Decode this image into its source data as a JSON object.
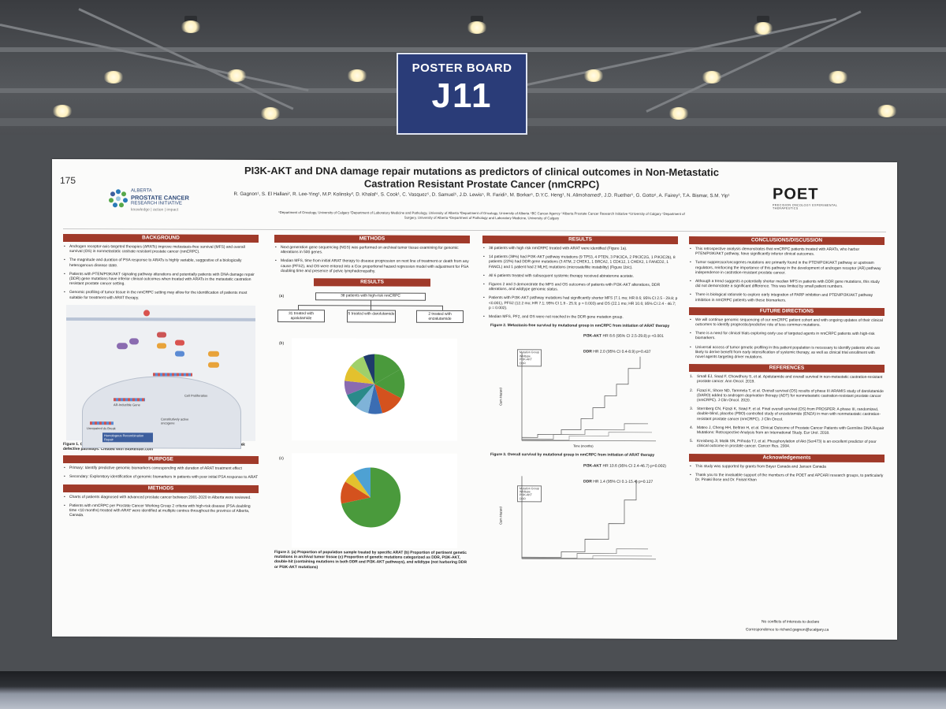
{
  "sign": {
    "line1": "POSTER BOARD",
    "line2": "J11"
  },
  "poster": {
    "number": "175",
    "logo_left": {
      "line1": "ALBERTA",
      "line2": "PROSTATE CANCER",
      "line3": "RESEARCH INITIATIVE",
      "tagline": "knowledge | action | impact"
    },
    "title_line1": "PI3K-AKT and DNA damage repair mutations as predictors of clinical outcomes in Non-Metastatic",
    "title_line2": "Castration Resistant Prostate Cancer (nmCRPC)",
    "authors": "R. Gagnon¹, S. El Hallani², R. Lee-Ying¹, M.P. Kolinsky³, D. Khalaf⁴, S. Cook¹, C. Vasquez⁵, D. Samuel⁵, J.D. Lewis⁵, R. Faridi⁵, M. Borkar⁵, D.Y.C. Heng¹, N. Alimohamed¹, J.D. Ruether¹, G. Gotto⁶, A. Fairey³, T.A. Bismar, S.M. Yip¹",
    "affiliations_line1": "¹Department of Oncology, University of Calgary ²Department of Laboratory Medicine and Pathology, University of Alberta ³Department of Oncology, University of Alberta ⁴BC Cancer Agency ⁵Alberta Prostate Cancer Research Initiative ⁶University of Calgary ⁷Department of",
    "affiliations_line2": "Surgery, University of Alberta ⁸Department of Pathology and Laboratory Medicine, University of Calgary",
    "logo_right": {
      "mark": "POET",
      "sub": "PRECISION ONCOLOGY EXPERIMENTAL THERAPEUTICS"
    },
    "col1": {
      "background_header": "BACKGROUND",
      "background": [
        "Androgen receptor-axis-targeted therapies (ARATs) improve metastasis-free survival (MFS) and overall survival (OS) in nonmetastatic castrate resistant prostate cancer (nmCRPC).",
        "The magnitude and duration of PSA response to ARATs is highly variable, suggestive of a biologically heterogenous disease state.",
        "Patients with PTEN/PI3K/AKT signaling pathway alterations and potentially patients with DNA damage repair (DDR) gene mutations have inferior clinical outcomes when treated with ARATs in the metastatic castration resistant prostate cancer setting.",
        "Genomic profiling of tumor tissue in the nmCRPC setting may allow for the identification of patients most suitable for treatment with ARAT therapy."
      ],
      "figure1_caption": "Figure 1. Oncogenic cellular proliferation via the androgen receptor (AR), PTEN/PI3K/AKT, and DDR defective pathways. Created with BioRender.com",
      "figure1_labels": {
        "proliferation": "Cell Proliferation",
        "constitutive": "Constitutively active oncogene",
        "hr": "Homologous Recombination Repair",
        "unrepaired": "Unrepaired ds Break",
        "ar": "AR-Inducible Gene"
      },
      "purpose_header": "PURPOSE",
      "purpose": [
        "Primary: Identify predictive genomic biomarkers corresponding with duration of ARAT treatment effect",
        "Secondary: Exploratory identification of genomic biomarkers in patients with poor initial PSA response to ARAT"
      ],
      "methods_header": "METHODS",
      "methods": [
        "Charts of patients diagnosed with advanced prostate cancer between 2001-2020 in Alberta were reviewed.",
        "Patients with nmCRPC per Prostate Cancer Working Group 2 criteria with high-risk disease (PSA doubling time <10 months) treated with ARAT were identified at multiple centres throughout the province of Alberta, Canada."
      ]
    },
    "col2": {
      "methods_header": "METHODS",
      "methods": [
        "Next generation gene sequencing (NGS) was performed on archival tumor tissue examining for genomic alterations in 500 genes.",
        "Median MFS, time from initial ARAT therapy to disease progression on next line of treatment or death from any cause (PFS2), and OS were entered into a Cox proportional hazard regression model with adjustment for PSA doubling time and presence of pelvic lymphadenopathy."
      ],
      "results_header": "RESULTS",
      "panel_a": "(a)",
      "flow_top": "38 patients with high-risk nmCRPC",
      "flow_1": "31 treated with apalutamide",
      "flow_2": "5 treated with darolutamide",
      "flow_3": "2 treated with enzalutamide",
      "panel_b": "(b)",
      "panel_c": "(c)",
      "figure2_caption": "Figure 2. (a) Proportion of population sample treated by specific ARAT (b) Proportion of pertinent genetic mutations in archival tumor tissue (c) Proportion of genetic mutations categorized as DDR, PI3K-AKT, double-hit (containing mutations in both DDR and PI3K-AKT pathways), and wildtype (not harboring DDR or PI3K-AKT mutations)"
    },
    "col3": {
      "results_header": "RESULTS",
      "results": [
        "38 patients with high risk nmCRPC treated with ARAT were identified (Figure 1a).",
        "14 patients (38%) had PI3K-AKT pathway mutations (9 TP53, 4 PTEN, 3 PIK3CA, 2 PIK3C2G, 1 PIK3C2b), 8 patients (22%) had DDR gene mutations (3 ATM, 2 CHEK1, 1 BRCA2, 1 CDK12, 1 CHEK2, 1 FANCD2, 1 FANCL) and 1 patient had 2 MLH1 mutations (microsatellite instability) (Figure 1b/c).",
        "All 6 patients treated with subsequent systemic therapy received abiraterone acetate.",
        "Figures 2 and 3 demonstrate the MFS and OS outcomes of patients with PI3K-AKT alterations, DDR alterations, and wildtype genomic status.",
        "Patients with PI3K-AKT pathway mutations had significantly shorter MFS (7.1 mo; HR 8.6; 95% CI 2.5 - 29.8; p <0.001), PFS2 (12.2 mo; HR 7.1; 95% CI 1.9 - 25.9; p = 0.003) and OS (22.1 mo; HR 10.6; 95% CI 2.4 - 46.7; p = 0.002).",
        "Median MFS, PF2, and OS were not reached in the DDR gene mutation group."
      ],
      "figure2_title": "Figure 2. Metastasis-free survival by mutational group in nmCRPC from initiation of ARAT therapy",
      "fig2_stat1_b": "PI3K-AKT",
      "fig2_stat1": "HR 8.6 (95% CI 2.5-29.8) p <0.001",
      "fig2_stat2_b": "DDR",
      "fig2_stat2": "HR 2.0 (95% CI 0.4-8.9) p=0.437",
      "figure3_title": "Figure 3. Overall survival by mutational group in nmCRPC from initiation of ARAT therapy",
      "fig3_stat1_b": "PI3K-AKT",
      "fig3_stat1": "HR 10.6 (95% CI 2.4-46.7) p=0.002)",
      "fig3_stat2_b": "DDR",
      "fig3_stat2": "HR 1.4 (95% CI 0.1-15.4) p=0.127",
      "mutation_group_title": "Mutation Group",
      "mutation_group_items": [
        "Wildtype",
        "PI3K-AKT",
        "DDR"
      ],
      "ylabel": "Cum Hazard",
      "xlabel": "Time (months)"
    },
    "col4": {
      "conclusions_header": "CONCLUSIONS/DISCUSSION",
      "conclusions": [
        "This retrospective analysis demonstrates that nmCRPC patients treated with ARATs, who harbor PTEN/PI3K/AKT pathway, have significantly inferior clinical outcomes.",
        "Tumor suppressor/oncogenes mutations are primarily found in the PTEN/PI3K/AKT pathway or upstream regulators, reinforcing the importance of this pathway in the development of androgen receptor (AR) pathway independence in castration-resistant prostate cancer.",
        "Although a trend suggests a potentially shorter median MFS in patients with DDR gene mutations, this study did not demonstrate a significant difference. This was limited by small patient numbers.",
        "There is biological rationale to explore early integration of PARP inhibition and PTEN/PI3K/AKT pathway inhibition in nmCRPC patients with these biomarkers."
      ],
      "future_header": "FUTURE DIRECTIONS",
      "future": [
        "We will continue genomic sequencing of our nmCRPC patient cohort and with ongoing updates of their clinical outcomes to identify prognostic/predictive role of less common mutations.",
        "There is a need for clinical trials exploring early use of targeted agents in nmCRPC patients with high-risk biomarkers.",
        "Universal access of tumor genetic profiling in this patient population is necessary to identify patients who are likely to derive benefit from early intensification of systemic therapy, as well as clinical trial enrollment with novel agents targeting driver mutations."
      ],
      "references_header": "REFERENCES",
      "references": [
        "Small EJ, Saad F, Chowdhury S, et al. Apalutamide and overall survival in non-metastatic castration-resistant prostate cancer. Ann Oncol. 2019.",
        "Fizazi K, Shore ND, Tammela T, et al. Overall survival (OS) results of phase III ARAMIS study of darolutamide (DARO) added to androgen deprivation therapy (ADT) for nonmetastatic castration-resistant prostate cancer (nmCRPC). J Clin Oncol. 2020.",
        "Sternberg CN, Fizazi K, Saad F, et al. Final overall survival (OS) from PROSPER: A phase III, randomized, double-blind, placebo (PBO)-controlled study of enzalutamide (ENZA) in men with nonmetastatic castration-resistant prostate cancer (nmCRPC). J Clin Oncol.",
        "Mateo J, Cheng HH, Beltran H, et al. Clinical Outcome of Prostate Cancer Patients with Germline DNA Repair Mutations: Retrospective Analysis from an International Study. Eur Urol. 2018.",
        "Kreisberg JI, Malik SN, Prihoda TJ, et al. Phosphorylation of Akt (Ser473) is an excellent predictor of poor clinical outcome in prostate cancer. Cancer Res. 2004."
      ],
      "ack_header": "Acknowledgements",
      "ack": [
        "This study was supported by grants from Bayer Canada and Jansen Canada",
        "Thank you to the invaluable support of the members of the POET and APCARI research groups, to particularly Dr. Pinaki Bose and Dr. Faisal Khan"
      ],
      "footer1": "No conflicts of interests to declare",
      "footer2": "Correspondence to richard.gagnon@ucalgary.ca"
    }
  }
}
